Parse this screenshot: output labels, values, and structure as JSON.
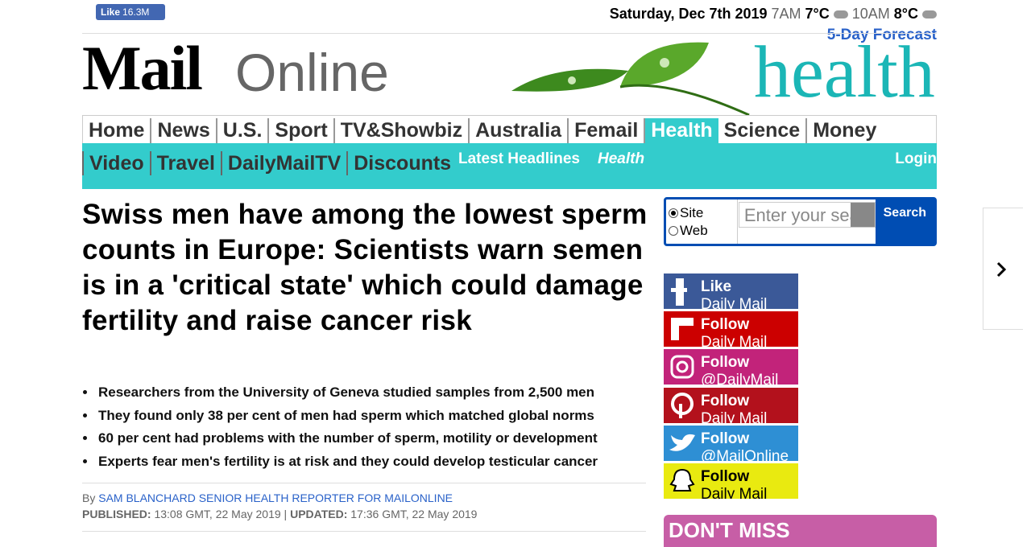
{
  "topbar": {
    "like_label": "Like",
    "like_count": "16.3M",
    "date": "Saturday, Dec 7th 2019",
    "weather": [
      {
        "time": "7AM",
        "temp": "7°C"
      },
      {
        "time": "10AM",
        "temp": "8°C"
      }
    ],
    "forecast": "5-Day Forecast"
  },
  "logo": {
    "mail": "Mail",
    "online": "Online",
    "section": "health"
  },
  "nav": {
    "primary": [
      "Home",
      "News",
      "U.S.",
      "Sport",
      "TV&Showbiz",
      "Australia",
      "Femail",
      "Health",
      "Science",
      "Money"
    ],
    "secondary": [
      "Video",
      "Travel",
      "DailyMailTV",
      "Discounts"
    ],
    "latest": "Latest Headlines",
    "latest_section": "Health",
    "login": "Login"
  },
  "search": {
    "options": [
      "Site",
      "Web"
    ],
    "placeholder": "Enter your search",
    "button": "Search"
  },
  "article": {
    "headline": "Swiss men have among the lowest sperm counts in Europe: Scientists warn semen is in a 'critical state' which could damage fertility and raise cancer risk",
    "bullets": [
      "Researchers from the University of Geneva studied samples from 2,500 men",
      "They found only 38 per cent of men had sperm which matched global norms",
      "60 per cent had problems with the number of sperm, motility or development",
      "Experts fear men's fertility is at risk and they could develop testicular cancer"
    ],
    "byline_prefix": "By",
    "author": "SAM BLANCHARD SENIOR HEALTH REPORTER FOR MAILONLINE",
    "published_label": "PUBLISHED:",
    "published": "13:08 GMT, 22 May 2019",
    "separator": "|",
    "updated_label": "UPDATED:",
    "updated": "17:36 GMT, 22 May 2019"
  },
  "social": [
    {
      "action": "Like",
      "target": "Daily Mail"
    },
    {
      "action": "Follow",
      "target": "Daily Mail"
    },
    {
      "action": "Follow",
      "target": "@DailyMail"
    },
    {
      "action": "Follow",
      "target": "Daily Mail"
    },
    {
      "action": "Follow",
      "target": "@MailOnline"
    },
    {
      "action": "Follow",
      "target": "Daily Mail"
    }
  ],
  "dont_miss": "DON'T MISS"
}
